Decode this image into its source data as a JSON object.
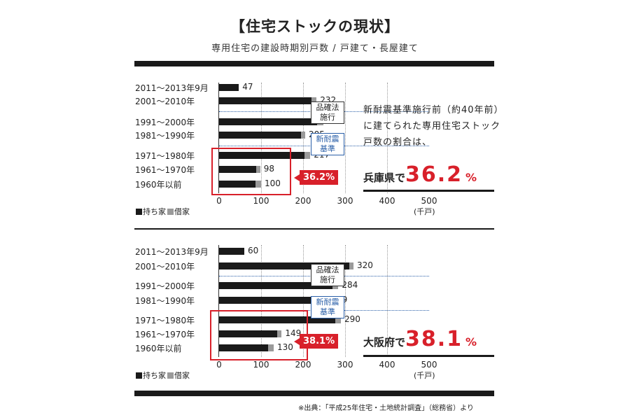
{
  "header": {
    "title": "【住宅ストックの現状】",
    "subtitle": "専用住宅の建設時期別戸数 / 戸建て・長屋建て"
  },
  "colors": {
    "owned": "#1a1a1a",
    "rented": "#9a9a9a",
    "accent": "#d8202a",
    "note_blue": "#2a5fa8"
  },
  "chart_data": [
    {
      "type": "bar",
      "orientation": "horizontal",
      "stacked": true,
      "region": "兵庫県",
      "categories": [
        "2011～2013年9月",
        "2001～2010年",
        "1991～2000年",
        "1981～1990年",
        "1971～1980年",
        "1961～1970年",
        "1960年以前"
      ],
      "totals": [
        47,
        232,
        248,
        205,
        217,
        98,
        100
      ],
      "series": [
        {
          "name": "持ち家",
          "values": [
            47,
            220,
            233,
            195,
            204,
            88,
            87
          ]
        },
        {
          "name": "借家",
          "values": [
            0,
            12,
            15,
            10,
            13,
            10,
            13
          ]
        }
      ],
      "x_ticks": [
        "0",
        "100",
        "200",
        "300",
        "400",
        "500"
      ],
      "unit": "(千戸)",
      "xlim": [
        0,
        500
      ],
      "highlight_share": "36.2%",
      "legend_position": "bottom-left"
    },
    {
      "type": "bar",
      "orientation": "horizontal",
      "stacked": true,
      "region": "大阪府",
      "categories": [
        "2011～2013年9月",
        "2001～2010年",
        "1991～2000年",
        "1981～1990年",
        "1971～1980年",
        "1961～1970年",
        "1960年以前"
      ],
      "totals": [
        60,
        320,
        284,
        259,
        290,
        149,
        130
      ],
      "series": [
        {
          "name": "持ち家",
          "values": [
            60,
            310,
            270,
            248,
            276,
            138,
            116
          ]
        },
        {
          "name": "借家",
          "values": [
            0,
            10,
            14,
            11,
            14,
            11,
            14
          ]
        }
      ],
      "x_ticks": [
        "0",
        "100",
        "200",
        "300",
        "400",
        "500"
      ],
      "unit": "(千戸)",
      "xlim": [
        0,
        500
      ],
      "highlight_share": "38.1%",
      "legend_position": "bottom-left"
    }
  ],
  "notes": {
    "hinkakuhou": "品確法施行",
    "shintaishin": "新耐震基準"
  },
  "legend": {
    "owned": "持ち家",
    "rented": "借家"
  },
  "callout": {
    "desc": "新耐震基準施行前（約40年前）に建てられた専用住宅ストック戸数の割合は、",
    "hyogo": {
      "pref": "兵庫県で",
      "value": "36.2",
      "pct": "%"
    },
    "osaka": {
      "pref": "大阪府で",
      "value": "38.1",
      "pct": "%"
    }
  },
  "source": "※出典：「平成25年住宅・土地統計調査」（総務省）より"
}
